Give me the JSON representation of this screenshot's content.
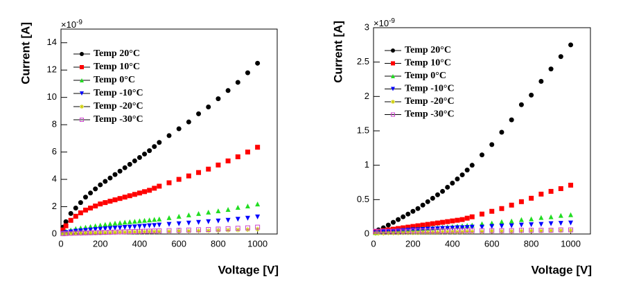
{
  "chart_data": [
    {
      "type": "scatter",
      "y_label": "Current [A]",
      "x_label": "Voltage [V]",
      "y_multiplier": {
        "base": "×10",
        "exponent": "-9"
      },
      "xlim": [
        0,
        1100
      ],
      "xticks": [
        0,
        200,
        400,
        600,
        800,
        1000
      ],
      "ylim": [
        0,
        15
      ],
      "yticks": [
        0,
        2,
        4,
        6,
        8,
        10,
        12,
        14
      ],
      "legend": "upper left",
      "x": [
        10,
        25,
        50,
        75,
        100,
        125,
        150,
        175,
        200,
        225,
        250,
        275,
        300,
        325,
        350,
        375,
        400,
        425,
        450,
        475,
        500,
        550,
        600,
        650,
        700,
        750,
        800,
        850,
        900,
        950,
        1000
      ],
      "series": [
        {
          "name": "Temp 20°C",
          "color": "#000000",
          "marker": "circle",
          "values": [
            0.5,
            0.9,
            1.5,
            1.9,
            2.3,
            2.7,
            3.0,
            3.3,
            3.6,
            3.85,
            4.1,
            4.35,
            4.6,
            4.85,
            5.1,
            5.35,
            5.6,
            5.85,
            6.1,
            6.4,
            6.7,
            7.2,
            7.7,
            8.2,
            8.8,
            9.3,
            9.9,
            10.5,
            11.1,
            11.8,
            12.5
          ]
        },
        {
          "name": "Temp 10°C",
          "color": "#ff0000",
          "marker": "square",
          "values": [
            0.3,
            0.6,
            1.0,
            1.3,
            1.55,
            1.75,
            1.9,
            2.05,
            2.2,
            2.3,
            2.4,
            2.5,
            2.6,
            2.7,
            2.8,
            2.9,
            3.0,
            3.1,
            3.2,
            3.35,
            3.5,
            3.75,
            4.0,
            4.25,
            4.5,
            4.75,
            5.05,
            5.35,
            5.65,
            6.0,
            6.35
          ]
        },
        {
          "name": "Temp 0°C",
          "color": "#22dd22",
          "marker": "triangle-up",
          "values": [
            0.1,
            0.2,
            0.3,
            0.4,
            0.45,
            0.5,
            0.55,
            0.6,
            0.65,
            0.7,
            0.75,
            0.8,
            0.83,
            0.87,
            0.9,
            0.93,
            0.97,
            1.0,
            1.03,
            1.07,
            1.1,
            1.2,
            1.3,
            1.4,
            1.5,
            1.6,
            1.7,
            1.8,
            1.95,
            2.05,
            2.2
          ]
        },
        {
          "name": "Temp -10°C",
          "color": "#0000ff",
          "marker": "triangle-down",
          "values": [
            0.05,
            0.1,
            0.15,
            0.2,
            0.23,
            0.26,
            0.29,
            0.32,
            0.35,
            0.38,
            0.4,
            0.43,
            0.45,
            0.48,
            0.5,
            0.52,
            0.55,
            0.57,
            0.6,
            0.62,
            0.65,
            0.7,
            0.75,
            0.8,
            0.85,
            0.9,
            0.95,
            1.0,
            1.08,
            1.15,
            1.25
          ]
        },
        {
          "name": "Temp -20°C",
          "color": "#cccc00",
          "marker": "star",
          "values": [
            0.02,
            0.03,
            0.04,
            0.05,
            0.06,
            0.07,
            0.08,
            0.08,
            0.09,
            0.1,
            0.1,
            0.11,
            0.12,
            0.12,
            0.13,
            0.14,
            0.14,
            0.15,
            0.16,
            0.16,
            0.17,
            0.18,
            0.2,
            0.21,
            0.23,
            0.24,
            0.26,
            0.28,
            0.3,
            0.32,
            0.35
          ]
        },
        {
          "name": "Temp -30°C",
          "color": "#cc44cc",
          "marker": "square-open",
          "values": [
            0.02,
            0.03,
            0.05,
            0.06,
            0.07,
            0.08,
            0.09,
            0.1,
            0.11,
            0.12,
            0.13,
            0.14,
            0.15,
            0.16,
            0.17,
            0.18,
            0.19,
            0.2,
            0.21,
            0.22,
            0.23,
            0.25,
            0.27,
            0.29,
            0.31,
            0.33,
            0.36,
            0.39,
            0.42,
            0.45,
            0.5
          ]
        }
      ]
    },
    {
      "type": "scatter",
      "y_label": "Current [A]",
      "x_label": "Voltage [V]",
      "y_multiplier": {
        "base": "×10",
        "exponent": "-9"
      },
      "xlim": [
        0,
        1100
      ],
      "xticks": [
        0,
        200,
        400,
        600,
        800,
        1000
      ],
      "ylim": [
        0,
        3
      ],
      "yticks": [
        0,
        0.5,
        1,
        1.5,
        2,
        2.5,
        3
      ],
      "legend": "upper left",
      "x": [
        10,
        25,
        50,
        75,
        100,
        125,
        150,
        175,
        200,
        225,
        250,
        275,
        300,
        325,
        350,
        375,
        400,
        425,
        450,
        475,
        500,
        550,
        600,
        650,
        700,
        750,
        800,
        850,
        900,
        950,
        1000
      ],
      "series": [
        {
          "name": "Temp 20°C",
          "color": "#000000",
          "marker": "circle",
          "values": [
            0.04,
            0.06,
            0.09,
            0.13,
            0.17,
            0.21,
            0.25,
            0.29,
            0.33,
            0.37,
            0.42,
            0.47,
            0.52,
            0.57,
            0.62,
            0.68,
            0.74,
            0.8,
            0.86,
            0.93,
            1.0,
            1.15,
            1.3,
            1.48,
            1.66,
            1.88,
            2.02,
            2.22,
            2.4,
            2.58,
            2.75
          ]
        },
        {
          "name": "Temp 10°C",
          "color": "#ff0000",
          "marker": "square",
          "values": [
            0.03,
            0.04,
            0.05,
            0.06,
            0.07,
            0.08,
            0.09,
            0.1,
            0.11,
            0.12,
            0.13,
            0.14,
            0.15,
            0.16,
            0.17,
            0.18,
            0.19,
            0.2,
            0.21,
            0.23,
            0.25,
            0.29,
            0.33,
            0.37,
            0.42,
            0.47,
            0.52,
            0.58,
            0.62,
            0.66,
            0.71
          ]
        },
        {
          "name": "Temp 0°C",
          "color": "#22dd22",
          "marker": "triangle-up",
          "values": [
            0.02,
            0.03,
            0.04,
            0.045,
            0.05,
            0.055,
            0.06,
            0.065,
            0.07,
            0.075,
            0.08,
            0.085,
            0.09,
            0.095,
            0.1,
            0.105,
            0.11,
            0.115,
            0.12,
            0.125,
            0.13,
            0.15,
            0.16,
            0.18,
            0.19,
            0.21,
            0.22,
            0.24,
            0.25,
            0.27,
            0.28
          ]
        },
        {
          "name": "Temp -10°C",
          "color": "#0000ff",
          "marker": "triangle-down",
          "values": [
            0.02,
            0.02,
            0.03,
            0.035,
            0.04,
            0.045,
            0.05,
            0.055,
            0.06,
            0.06,
            0.065,
            0.07,
            0.07,
            0.075,
            0.08,
            0.08,
            0.085,
            0.09,
            0.09,
            0.095,
            0.1,
            0.1,
            0.11,
            0.115,
            0.12,
            0.13,
            0.135,
            0.14,
            0.15,
            0.155,
            0.16
          ]
        },
        {
          "name": "Temp -20°C",
          "color": "#cccc00",
          "marker": "star",
          "values": [
            0.01,
            0.01,
            0.01,
            0.015,
            0.015,
            0.015,
            0.02,
            0.02,
            0.02,
            0.02,
            0.025,
            0.025,
            0.025,
            0.025,
            0.03,
            0.03,
            0.03,
            0.03,
            0.03,
            0.035,
            0.035,
            0.035,
            0.04,
            0.04,
            0.04,
            0.045,
            0.045,
            0.045,
            0.05,
            0.05,
            0.05
          ]
        },
        {
          "name": "Temp -30°C",
          "color": "#cc44cc",
          "marker": "square-open",
          "values": [
            0.04,
            0.04,
            0.04,
            0.04,
            0.04,
            0.04,
            0.04,
            0.04,
            0.045,
            0.045,
            0.045,
            0.045,
            0.045,
            0.045,
            0.045,
            0.045,
            0.05,
            0.05,
            0.05,
            0.05,
            0.05,
            0.05,
            0.05,
            0.05,
            0.05,
            0.055,
            0.055,
            0.055,
            0.055,
            0.06,
            0.06
          ]
        }
      ]
    }
  ]
}
